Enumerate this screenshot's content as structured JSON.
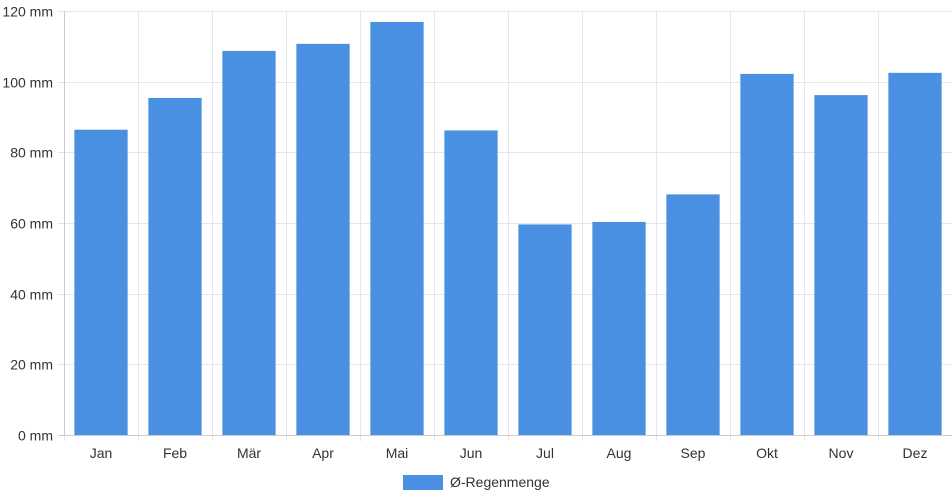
{
  "chart_data": {
    "type": "bar",
    "title": "",
    "xlabel": "",
    "ylabel": "",
    "categories": [
      "Jan",
      "Feb",
      "Mär",
      "Apr",
      "Mai",
      "Jun",
      "Jul",
      "Aug",
      "Sep",
      "Okt",
      "Nov",
      "Dez"
    ],
    "series": [
      {
        "name": "Ø-Regenmenge",
        "values": [
          86.4,
          95.4,
          108.7,
          110.7,
          116.9,
          86.2,
          59.6,
          60.3,
          68.1,
          102.2,
          96.2,
          102.5
        ],
        "color": "#4a90e2"
      }
    ],
    "ylim": [
      0,
      120
    ],
    "yticks": [
      0,
      20,
      40,
      60,
      80,
      100,
      120
    ],
    "ytick_labels": [
      "0 mm",
      "20 mm",
      "40 mm",
      "60 mm",
      "80 mm",
      "100 mm",
      "120 mm"
    ],
    "grid": true,
    "legend_position": "bottom-center"
  }
}
